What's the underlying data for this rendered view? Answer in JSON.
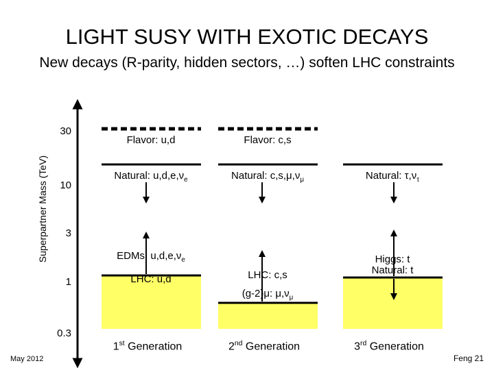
{
  "header": {
    "title": "LIGHT SUSY WITH EXOTIC DECAYS",
    "subtitle": "New decays (R-parity, hidden sectors, …) soften LHC constraints"
  },
  "axis": {
    "label": "Superpartner Mass (TeV)",
    "ticks": [
      "30",
      "10",
      "3",
      "1",
      "0.3"
    ]
  },
  "columns": [
    {
      "flavor": "Flavor: u,d",
      "natural": {
        "text": "Natural: u,d,e,ν",
        "sub": "e"
      },
      "low": [
        {
          "text": "EDMs: u,d,e,ν",
          "sub": "e"
        },
        {
          "text": "LHC: u,d",
          "sub": ""
        }
      ],
      "generation": {
        "num": "1",
        "sup": "st",
        "text": " Generation"
      }
    },
    {
      "flavor": "Flavor: c,s",
      "natural": {
        "text": "Natural: c,s,μ,ν",
        "sub": "μ"
      },
      "low": [
        {
          "text": "LHC: c,s",
          "sub": ""
        },
        {
          "text": "(g-2)μ: μ,ν",
          "sub": "μ"
        }
      ],
      "generation": {
        "num": "2",
        "sup": "nd",
        "text": " Generation"
      }
    },
    {
      "natural": {
        "text": "Natural: τ,ν",
        "sub": "τ"
      },
      "low": [
        {
          "text": "Higgs: t",
          "sub": ""
        },
        {
          "text": "Natural: t",
          "sub": ""
        }
      ],
      "generation": {
        "num": "3",
        "sup": "rd",
        "text": " Generation"
      }
    }
  ],
  "footer": {
    "date": "May 2012",
    "page": "Feng 21"
  }
}
